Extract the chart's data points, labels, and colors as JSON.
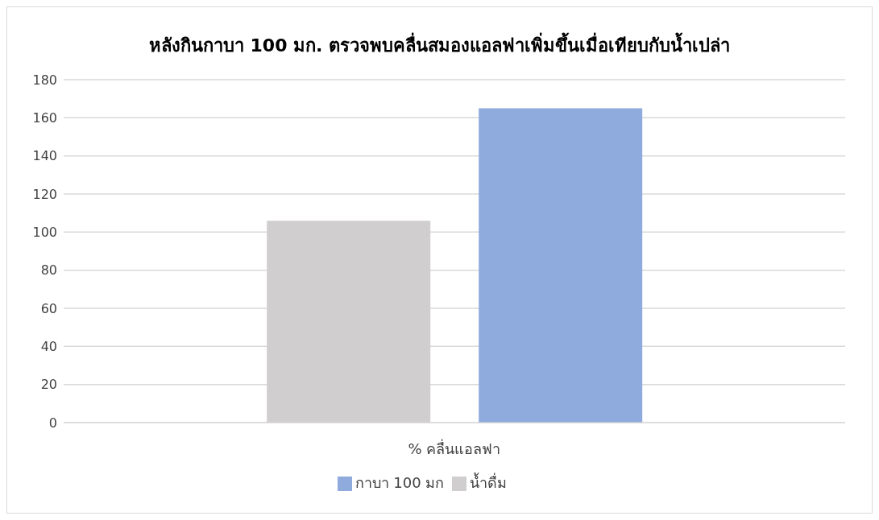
{
  "chart_data": {
    "type": "bar",
    "title": "หลังกินกาบา 100 มก. ตรวจพบคลื่นสมองแอลฟาเพิ่มขึ้นเมื่อเทียบกับน้ำเปล่า",
    "categories": [
      "% คลื่นแอลฟา"
    ],
    "series": [
      {
        "name": "น้ำดื่ม",
        "color": "#d0cece",
        "values": [
          106
        ]
      },
      {
        "name": "กาบา 100 มก",
        "color": "#8faadc",
        "values": [
          165
        ]
      }
    ],
    "ylim": [
      0,
      180
    ],
    "yticks": [
      0,
      20,
      40,
      60,
      80,
      100,
      120,
      140,
      160,
      180
    ],
    "grid": "y",
    "legend": "bottom"
  }
}
